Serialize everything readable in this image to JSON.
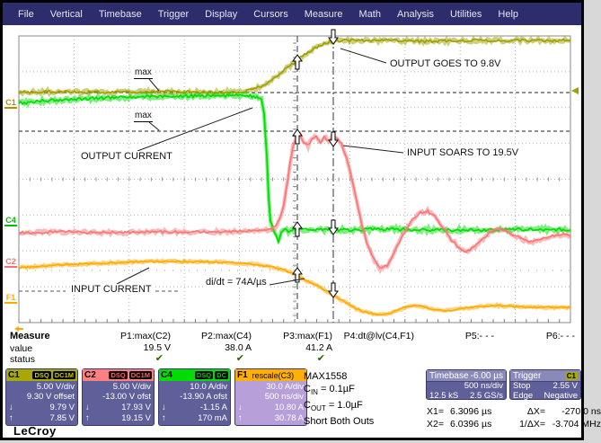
{
  "menu": {
    "items": [
      "File",
      "Vertical",
      "Timebase",
      "Trigger",
      "Display",
      "Cursors",
      "Measure",
      "Math",
      "Analysis",
      "Utilities",
      "Help"
    ]
  },
  "chart_data": {
    "type": "line",
    "x_axis": {
      "per_div": "500 ns/div",
      "divisions": 10,
      "delay": "-6.00 µs"
    },
    "y_axis": {
      "divisions": 8
    },
    "series": [
      {
        "name": "C1-output-voltage",
        "color": "#a0a000",
        "amp": 2.6,
        "points": [
          [
            18,
            100
          ],
          [
            60,
            99
          ],
          [
            120,
            100
          ],
          [
            180,
            99
          ],
          [
            240,
            100
          ],
          [
            268,
            99
          ],
          [
            278,
            97
          ],
          [
            290,
            92
          ],
          [
            303,
            84
          ],
          [
            316,
            73
          ],
          [
            328,
            64
          ],
          [
            340,
            55
          ],
          [
            352,
            48
          ],
          [
            364,
            44
          ],
          [
            376,
            42
          ],
          [
            420,
            42
          ],
          [
            470,
            43
          ],
          [
            520,
            42
          ],
          [
            570,
            42
          ],
          [
            632,
            42
          ]
        ]
      },
      {
        "name": "C4-output-current",
        "color": "#00dd00",
        "amp": 2.8,
        "points": [
          [
            18,
            112
          ],
          [
            50,
            109
          ],
          [
            90,
            107
          ],
          [
            140,
            105
          ],
          [
            200,
            104
          ],
          [
            250,
            103
          ],
          [
            272,
            103
          ],
          [
            283,
            105
          ],
          [
            288,
            108
          ],
          [
            291,
            125
          ],
          [
            294,
            170
          ],
          [
            296,
            215
          ],
          [
            298,
            243
          ],
          [
            301,
            252
          ],
          [
            304,
            259
          ],
          [
            307,
            265
          ],
          [
            310,
            256
          ],
          [
            314,
            251
          ],
          [
            318,
            254
          ],
          [
            330,
            253
          ],
          [
            380,
            253
          ],
          [
            430,
            252
          ],
          [
            480,
            253
          ],
          [
            540,
            253
          ],
          [
            590,
            252
          ],
          [
            632,
            253
          ]
        ]
      },
      {
        "name": "C2-input-voltage",
        "color": "#f87878",
        "amp": 2.3,
        "points": [
          [
            18,
            256
          ],
          [
            60,
            255
          ],
          [
            120,
            256
          ],
          [
            180,
            255
          ],
          [
            240,
            255
          ],
          [
            280,
            254
          ],
          [
            295,
            253
          ],
          [
            303,
            250
          ],
          [
            308,
            242
          ],
          [
            313,
            225
          ],
          [
            317,
            200
          ],
          [
            320,
            178
          ],
          [
            323,
            160
          ],
          [
            327,
            150
          ],
          [
            331,
            148
          ],
          [
            335,
            156
          ],
          [
            340,
            159
          ],
          [
            344,
            151
          ],
          [
            349,
            149
          ],
          [
            354,
            155
          ],
          [
            358,
            150
          ],
          [
            363,
            153
          ],
          [
            368,
            150
          ],
          [
            373,
            152
          ],
          [
            377,
            157
          ],
          [
            381,
            167
          ],
          [
            386,
            185
          ],
          [
            392,
            212
          ],
          [
            398,
            240
          ],
          [
            405,
            266
          ],
          [
            412,
            284
          ],
          [
            420,
            296
          ],
          [
            428,
            292
          ],
          [
            436,
            278
          ],
          [
            445,
            259
          ],
          [
            455,
            243
          ],
          [
            465,
            234
          ],
          [
            473,
            232
          ],
          [
            481,
            238
          ],
          [
            490,
            250
          ],
          [
            499,
            263
          ],
          [
            508,
            273
          ],
          [
            516,
            277
          ],
          [
            524,
            273
          ],
          [
            533,
            264
          ],
          [
            542,
            256
          ],
          [
            551,
            252
          ],
          [
            560,
            254
          ],
          [
            570,
            259
          ],
          [
            580,
            264
          ],
          [
            590,
            266
          ],
          [
            600,
            263
          ],
          [
            612,
            259
          ],
          [
            622,
            258
          ],
          [
            632,
            260
          ]
        ]
      },
      {
        "name": "F1-input-current",
        "color": "#ffaa00",
        "amp": 1.4,
        "points": [
          [
            18,
            295
          ],
          [
            60,
            292
          ],
          [
            110,
            290
          ],
          [
            160,
            288
          ],
          [
            210,
            288
          ],
          [
            250,
            289
          ],
          [
            280,
            291
          ],
          [
            300,
            294
          ],
          [
            312,
            297
          ],
          [
            322,
            301
          ],
          [
            332,
            306
          ],
          [
            342,
            311
          ],
          [
            352,
            316
          ],
          [
            362,
            322
          ],
          [
            372,
            328
          ],
          [
            382,
            334
          ],
          [
            392,
            340
          ],
          [
            402,
            344
          ],
          [
            412,
            346
          ],
          [
            422,
            347
          ],
          [
            432,
            345
          ],
          [
            442,
            341
          ],
          [
            452,
            338
          ],
          [
            462,
            337
          ],
          [
            472,
            339
          ],
          [
            482,
            342
          ],
          [
            492,
            343
          ],
          [
            502,
            342
          ],
          [
            515,
            340
          ],
          [
            530,
            338
          ],
          [
            550,
            337
          ],
          [
            570,
            338
          ],
          [
            590,
            339
          ],
          [
            610,
            339
          ],
          [
            632,
            339
          ]
        ]
      }
    ],
    "level_lines": [
      {
        "y": 100,
        "style": "dash"
      },
      {
        "y": 143,
        "style": "dash"
      },
      {
        "y": 298,
        "style": "sparse"
      }
    ],
    "dash_segments": [
      [
        18,
        321,
        70,
        321
      ],
      [
        170,
        321,
        197,
        321
      ]
    ],
    "cursors": [
      {
        "x": 328,
        "dir": "up",
        "tips": [
          58,
          141,
          244,
          295
        ]
      },
      {
        "x": 368,
        "dir": "down",
        "tips": [
          46,
          160,
          258,
          328
        ]
      }
    ],
    "markers": {
      "trigger_level": {
        "y": 98,
        "color": "#a0a000"
      },
      "f1_offscreen": {
        "x": 13,
        "y": 363,
        "color": "#ffaa00"
      }
    },
    "annotations": [
      {
        "text": "max",
        "x": 146,
        "y": 72,
        "underline": true,
        "line": [
          163,
          85,
          174,
          98
        ]
      },
      {
        "text": "max",
        "x": 146,
        "y": 120,
        "underline": true,
        "line": [
          163,
          133,
          174,
          142
        ]
      },
      {
        "text": "OUTPUT CURRENT",
        "x": 86,
        "y": 165,
        "line": [
          150,
          165,
          278,
          117
        ]
      },
      {
        "text": "OUTPUT GOES TO 9.8V",
        "x": 430,
        "y": 62,
        "line": [
          427,
          67,
          376,
          51
        ]
      },
      {
        "text": "INPUT SOARS TO 19.5V",
        "x": 449,
        "y": 161,
        "line": [
          446,
          167,
          379,
          159
        ]
      },
      {
        "text": "INPUT CURRENT",
        "x": 75,
        "y": 313,
        "line": [
          127,
          313,
          163,
          295
        ]
      },
      {
        "text": "di/dt = 74A/µs",
        "x": 225,
        "y": 305,
        "line": [
          297,
          314,
          336,
          307
        ]
      }
    ],
    "channel_markers": [
      {
        "label": "C1",
        "x": 2,
        "y": 106,
        "color": "#b09000"
      },
      {
        "label": "C4",
        "x": 2,
        "y": 237,
        "color": "#00bb00"
      },
      {
        "label": "C2",
        "x": 2,
        "y": 283,
        "color": "#ff7070"
      },
      {
        "label": "F1",
        "x": 2,
        "y": 323,
        "color": "#ffaa00"
      }
    ]
  },
  "measure": {
    "label": "Measure",
    "value_label": "value",
    "status_label": "status",
    "columns": [
      {
        "header": "P1:max(C2)",
        "value": "19.5 V",
        "status": "✔"
      },
      {
        "header": "P2:max(C4)",
        "value": "38.0 A",
        "status": "✔"
      },
      {
        "header": "P3:max(F1)",
        "value": "41.2 A",
        "status": "✔"
      },
      {
        "header": "P4:dt@lv(C4,F1)",
        "value": "",
        "status": ""
      },
      {
        "header": "P5:- - -",
        "value": "",
        "status": ""
      },
      {
        "header": "P6:- - -",
        "value": "",
        "status": ""
      }
    ]
  },
  "channels": [
    {
      "name": "C1",
      "badges": [
        "DSQ",
        "DC1M"
      ],
      "note": "",
      "line1": "5.00 V/div",
      "line2": "9.30 V offset",
      "down": "9.79 V",
      "up": "7.85 V",
      "header_color": "#a8a800",
      "body_color": "#5f5f99",
      "badge_text": "#c8c800"
    },
    {
      "name": "C2",
      "badges": [
        "DSQ",
        "DC1M"
      ],
      "note": "",
      "line1": "5.00 V/div",
      "line2": "-13.00 V ofst",
      "down": "17.93 V",
      "up": "19.15 V",
      "header_color": "#ff8080",
      "body_color": "#5f5f99",
      "badge_text": "#ff6060"
    },
    {
      "name": "C4",
      "badges": [
        "DSQ",
        "DC"
      ],
      "note": "",
      "line1": "10.0 A/div",
      "line2": "-13.90 A ofst",
      "down": "-1.15 A",
      "up": "170 mA",
      "header_color": "#00dd00",
      "body_color": "#5f5f99",
      "badge_text": "#00cc00"
    },
    {
      "name": "F1",
      "badges": [],
      "note": "rescale(C3)",
      "line1": "30.0 A/div",
      "line2": "500 ns/div",
      "down": "10.80 A",
      "up": "30.78 A",
      "header_color": "#ffb000",
      "body_color": "#b7a0da",
      "badge_text": "#ffaa00"
    }
  ],
  "timebase": {
    "title": "Timebase",
    "delay": "-6.00 µs",
    "scale": "500 ns/div",
    "samples": "12.5 kS",
    "rate": "2.5 GS/s"
  },
  "trigger": {
    "title": "Trigger",
    "source": "C1",
    "mode": "Stop",
    "level": "2.55 V",
    "type": "Edge",
    "slope": "Negative"
  },
  "cursor_readout": {
    "x1_label": "X1=",
    "x1": "6.3096 µs",
    "dx_label": "ΔX=",
    "dx": "-270.0 ns",
    "x2_label": "X2=",
    "x2": "6.0396 µs",
    "inv_label": "1/ΔX=",
    "inv": "-3.704 MHz"
  },
  "dut": {
    "line1": "MAX1558",
    "c_in_pre": "C",
    "c_in_sub": "IN",
    "c_in_post": " = 0.1µF",
    "c_out_pre": "C",
    "c_out_sub": "OUT",
    "c_out_post": " = 1.0µF",
    "line4": "Short Both Outs"
  },
  "logo": "LeCroy"
}
